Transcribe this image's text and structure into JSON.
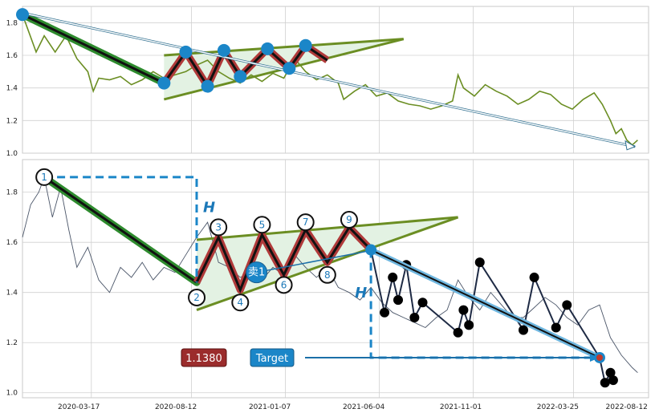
{
  "chart_data": [
    {
      "type": "line",
      "panel": "top",
      "ylim": [
        1.0,
        1.9
      ],
      "yticks": [
        "1.0",
        "1.2",
        "1.4",
        "1.6",
        "1.8"
      ],
      "grid": true,
      "series": [
        {
          "values": [
            [
              0,
              1.85
            ],
            [
              5,
              1.62
            ],
            [
              8,
              1.72
            ],
            [
              12,
              1.62
            ],
            [
              16,
              1.72
            ],
            [
              20,
              1.58
            ],
            [
              24,
              1.5
            ],
            [
              26,
              1.38
            ],
            [
              28,
              1.46
            ],
            [
              32,
              1.45
            ],
            [
              36,
              1.47
            ],
            [
              40,
              1.42
            ],
            [
              44,
              1.45
            ],
            [
              48,
              1.5
            ],
            [
              52,
              1.46
            ],
            [
              56,
              1.48
            ],
            [
              60,
              1.5
            ],
            [
              64,
              1.54
            ],
            [
              68,
              1.57
            ],
            [
              72,
              1.5
            ],
            [
              76,
              1.46
            ],
            [
              80,
              1.43
            ],
            [
              84,
              1.48
            ],
            [
              88,
              1.44
            ],
            [
              92,
              1.49
            ],
            [
              96,
              1.46
            ],
            [
              100,
              1.58
            ],
            [
              104,
              1.5
            ],
            [
              108,
              1.45
            ],
            [
              112,
              1.48
            ],
            [
              116,
              1.43
            ],
            [
              118,
              1.33
            ],
            [
              122,
              1.38
            ],
            [
              126,
              1.42
            ],
            [
              130,
              1.35
            ],
            [
              134,
              1.37
            ],
            [
              138,
              1.32
            ],
            [
              142,
              1.3
            ],
            [
              146,
              1.29
            ],
            [
              150,
              1.27
            ],
            [
              154,
              1.29
            ],
            [
              158,
              1.32
            ],
            [
              160,
              1.48
            ],
            [
              162,
              1.4
            ],
            [
              166,
              1.35
            ],
            [
              170,
              1.42
            ],
            [
              174,
              1.38
            ],
            [
              178,
              1.35
            ],
            [
              182,
              1.3
            ],
            [
              186,
              1.33
            ],
            [
              190,
              1.38
            ],
            [
              194,
              1.36
            ],
            [
              198,
              1.3
            ],
            [
              202,
              1.27
            ],
            [
              206,
              1.33
            ],
            [
              210,
              1.37
            ],
            [
              213,
              1.3
            ],
            [
              216,
              1.2
            ],
            [
              218,
              1.12
            ],
            [
              220,
              1.15
            ],
            [
              222,
              1.08
            ],
            [
              224,
              1.05
            ],
            [
              226,
              1.08
            ]
          ]
        }
      ],
      "overlay": {
        "downtrend": [
          [
            0,
            1.85
          ],
          [
            52,
            1.43
          ]
        ],
        "zigzag": [
          [
            52,
            1.43
          ],
          [
            60,
            1.62
          ],
          [
            68,
            1.41
          ],
          [
            74,
            1.63
          ],
          [
            80,
            1.47
          ],
          [
            90,
            1.64
          ],
          [
            98,
            1.52
          ],
          [
            104,
            1.66
          ],
          [
            112,
            1.57
          ]
        ],
        "triangle_upper": [
          [
            52,
            1.6
          ],
          [
            140,
            1.7
          ]
        ],
        "triangle_lower": [
          [
            52,
            1.33
          ],
          [
            140,
            1.7
          ]
        ],
        "arrow": [
          [
            0,
            1.86
          ],
          [
            225,
            1.04
          ]
        ]
      }
    },
    {
      "type": "line",
      "panel": "bottom",
      "ylim": [
        0.98,
        1.93
      ],
      "yticks": [
        "1.0",
        "1.2",
        "1.4",
        "1.6",
        "1.8"
      ],
      "xticks": [
        "2020-03-17",
        "2020-08-12",
        "2021-01-07",
        "2021-06-04",
        "2021-11-01",
        "2022-03-25",
        "2022-08-12"
      ],
      "grid": true,
      "series": [
        {
          "values": [
            [
              0,
              1.62
            ],
            [
              3,
              1.75
            ],
            [
              6,
              1.8
            ],
            [
              8,
              1.86
            ],
            [
              11,
              1.7
            ],
            [
              14,
              1.82
            ],
            [
              17,
              1.65
            ],
            [
              20,
              1.5
            ],
            [
              24,
              1.58
            ],
            [
              28,
              1.45
            ],
            [
              32,
              1.4
            ],
            [
              36,
              1.5
            ],
            [
              40,
              1.46
            ],
            [
              44,
              1.52
            ],
            [
              48,
              1.45
            ],
            [
              52,
              1.5
            ],
            [
              56,
              1.48
            ],
            [
              60,
              1.55
            ],
            [
              64,
              1.62
            ],
            [
              68,
              1.68
            ],
            [
              72,
              1.52
            ],
            [
              76,
              1.5
            ],
            [
              80,
              1.46
            ],
            [
              84,
              1.48
            ],
            [
              88,
              1.45
            ],
            [
              92,
              1.5
            ],
            [
              96,
              1.47
            ],
            [
              100,
              1.55
            ],
            [
              104,
              1.5
            ],
            [
              108,
              1.46
            ],
            [
              112,
              1.5
            ],
            [
              116,
              1.42
            ],
            [
              120,
              1.4
            ],
            [
              124,
              1.37
            ],
            [
              128,
              1.42
            ],
            [
              132,
              1.36
            ],
            [
              136,
              1.32
            ],
            [
              140,
              1.3
            ],
            [
              144,
              1.28
            ],
            [
              148,
              1.26
            ],
            [
              152,
              1.3
            ],
            [
              156,
              1.33
            ],
            [
              160,
              1.45
            ],
            [
              164,
              1.38
            ],
            [
              168,
              1.33
            ],
            [
              172,
              1.4
            ],
            [
              176,
              1.35
            ],
            [
              180,
              1.3
            ],
            [
              184,
              1.3
            ],
            [
              188,
              1.34
            ],
            [
              192,
              1.38
            ],
            [
              196,
              1.35
            ],
            [
              200,
              1.3
            ],
            [
              204,
              1.27
            ],
            [
              208,
              1.33
            ],
            [
              212,
              1.35
            ],
            [
              216,
              1.22
            ],
            [
              220,
              1.15
            ],
            [
              224,
              1.1
            ],
            [
              226,
              1.08
            ]
          ]
        }
      ],
      "overlay": {
        "downtrend": [
          [
            8,
            1.86
          ],
          [
            64,
            1.44
          ]
        ],
        "zigzag": [
          [
            64,
            1.44
          ],
          [
            72,
            1.62
          ],
          [
            80,
            1.41
          ],
          [
            88,
            1.63
          ],
          [
            96,
            1.47
          ],
          [
            104,
            1.65
          ],
          [
            112,
            1.52
          ],
          [
            120,
            1.66
          ],
          [
            128,
            1.57
          ]
        ],
        "triangle_upper": [
          [
            64,
            1.61
          ],
          [
            160,
            1.7
          ]
        ],
        "triangle_lower": [
          [
            64,
            1.33
          ],
          [
            160,
            1.7
          ]
        ],
        "forecast": [
          [
            128,
            1.57
          ],
          [
            133,
            1.32
          ],
          [
            136,
            1.46
          ],
          [
            138,
            1.37
          ],
          [
            141,
            1.51
          ],
          [
            144,
            1.3
          ],
          [
            147,
            1.36
          ],
          [
            160,
            1.24
          ],
          [
            162,
            1.33
          ],
          [
            164,
            1.27
          ],
          [
            168,
            1.52
          ],
          [
            184,
            1.25
          ],
          [
            188,
            1.46
          ],
          [
            196,
            1.26
          ],
          [
            200,
            1.35
          ],
          [
            212,
            1.14
          ],
          [
            214,
            1.04
          ],
          [
            216,
            1.08
          ],
          [
            217,
            1.05
          ]
        ],
        "target_line": [
          [
            128,
            1.57
          ],
          [
            212,
            1.14
          ]
        ],
        "h_dashed_left": [
          [
            8,
            1.86
          ],
          [
            64,
            1.86
          ],
          [
            64,
            1.44
          ]
        ],
        "h_dashed_right": [
          [
            128,
            1.57
          ],
          [
            128,
            1.14
          ],
          [
            212,
            1.14
          ]
        ],
        "point_labels": [
          "1",
          "2",
          "3",
          "4",
          "5",
          "6",
          "7",
          "8",
          "9"
        ],
        "point_coords": [
          [
            8,
            1.86
          ],
          [
            64,
            1.38
          ],
          [
            72,
            1.66
          ],
          [
            80,
            1.36
          ],
          [
            88,
            1.67
          ],
          [
            96,
            1.43
          ],
          [
            104,
            1.68
          ],
          [
            112,
            1.47
          ],
          [
            120,
            1.69
          ]
        ],
        "h_label": "H",
        "sell_badge": "卖1",
        "price_box": "1.1380",
        "target_box": "Target"
      }
    }
  ],
  "colors": {
    "price_top": "#6b8e23",
    "price_bottom": "#4a5568",
    "downtrend_fill": "#2e8b2e",
    "zigzag_fill": "#b03a3a",
    "triangle_fill": "#e3f2e3",
    "triangle_edge": "#6b8e23",
    "accent_blue": "#1b86c8",
    "price_box_bg": "#9b2c2c",
    "target_box_bg": "#1b86c8",
    "grid": "#d0d0d0"
  }
}
